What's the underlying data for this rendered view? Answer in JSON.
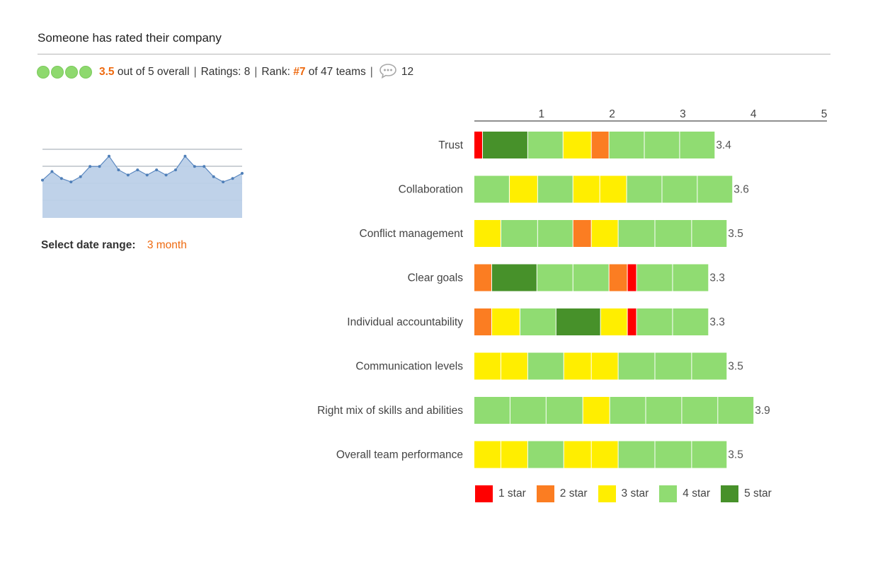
{
  "header": {
    "title": "Someone has rated their company"
  },
  "summary": {
    "rating_dots": 4,
    "score": "3.5",
    "score_suffix": "out of 5 overall",
    "ratings_text": "Ratings: 8",
    "rank_prefix": "Rank:",
    "rank": "#7",
    "rank_suffix": "of 47 teams",
    "comments_count": "12",
    "accent_color": "#ee6a10"
  },
  "trend": {
    "type": "area",
    "values": [
      3.5,
      3.55,
      3.51,
      3.49,
      3.52,
      3.58,
      3.58,
      3.64,
      3.56,
      3.53,
      3.56,
      3.53,
      3.56,
      3.53,
      3.56,
      3.64,
      3.58,
      3.58,
      3.52,
      3.49,
      3.51,
      3.54
    ]
  },
  "date_range": {
    "label": "Select date range:",
    "value": "3 month"
  },
  "chart_data": {
    "type": "bar",
    "stacked": true,
    "orientation": "horizontal",
    "xlim": [
      0,
      5
    ],
    "x_ticks": [
      1,
      2,
      3,
      4,
      5
    ],
    "x_tick_position": "top",
    "categories": [
      "Trust",
      "Collaboration",
      "Conflict management",
      "Clear goals",
      "Individual accountability",
      "Communication levels",
      "Right mix of skills and abilities",
      "Overall team performance"
    ],
    "averages": [
      "3.4",
      "3.6",
      "3.5",
      "3.3",
      "3.3",
      "3.5",
      "3.9",
      "3.5"
    ],
    "segments": [
      [
        [
          1,
          0.12
        ],
        [
          5,
          0.64
        ],
        [
          4,
          0.5
        ],
        [
          3,
          0.4
        ],
        [
          2,
          0.25
        ],
        [
          4,
          0.5
        ],
        [
          4,
          0.5
        ],
        [
          4,
          0.5
        ]
      ],
      [
        [
          4,
          0.5
        ],
        [
          3,
          0.4
        ],
        [
          4,
          0.5
        ],
        [
          3,
          0.38
        ],
        [
          3,
          0.38
        ],
        [
          4,
          0.5
        ],
        [
          4,
          0.5
        ],
        [
          4,
          0.5
        ]
      ],
      [
        [
          3,
          0.38
        ],
        [
          4,
          0.52
        ],
        [
          4,
          0.5
        ],
        [
          2,
          0.26
        ],
        [
          3,
          0.38
        ],
        [
          4,
          0.52
        ],
        [
          4,
          0.52
        ],
        [
          4,
          0.5
        ]
      ],
      [
        [
          2,
          0.25
        ],
        [
          5,
          0.64
        ],
        [
          4,
          0.51
        ],
        [
          4,
          0.51
        ],
        [
          2,
          0.26
        ],
        [
          1,
          0.13
        ],
        [
          4,
          0.51
        ],
        [
          4,
          0.51
        ]
      ],
      [
        [
          2,
          0.25
        ],
        [
          3,
          0.4
        ],
        [
          4,
          0.51
        ],
        [
          5,
          0.63
        ],
        [
          3,
          0.38
        ],
        [
          1,
          0.13
        ],
        [
          4,
          0.51
        ],
        [
          4,
          0.51
        ]
      ],
      [
        [
          3,
          0.38
        ],
        [
          3,
          0.38
        ],
        [
          4,
          0.51
        ],
        [
          3,
          0.39
        ],
        [
          3,
          0.38
        ],
        [
          4,
          0.52
        ],
        [
          4,
          0.52
        ],
        [
          4,
          0.5
        ]
      ],
      [
        [
          4,
          0.51
        ],
        [
          4,
          0.51
        ],
        [
          4,
          0.52
        ],
        [
          3,
          0.38
        ],
        [
          4,
          0.51
        ],
        [
          4,
          0.51
        ],
        [
          4,
          0.51
        ],
        [
          4,
          0.51
        ]
      ],
      [
        [
          3,
          0.38
        ],
        [
          3,
          0.38
        ],
        [
          4,
          0.51
        ],
        [
          3,
          0.39
        ],
        [
          3,
          0.38
        ],
        [
          4,
          0.52
        ],
        [
          4,
          0.52
        ],
        [
          4,
          0.5
        ]
      ]
    ],
    "colors": {
      "1": "#ff0000",
      "2": "#fb7d22",
      "3": "#ffee00",
      "4": "#90dc72",
      "5": "#47912a"
    },
    "legend": [
      {
        "stars": 1,
        "label": "1 star"
      },
      {
        "stars": 2,
        "label": "2 star"
      },
      {
        "stars": 3,
        "label": "3 star"
      },
      {
        "stars": 4,
        "label": "4 star"
      },
      {
        "stars": 5,
        "label": "5 star"
      }
    ],
    "legend_position": "bottom",
    "grid": false
  }
}
